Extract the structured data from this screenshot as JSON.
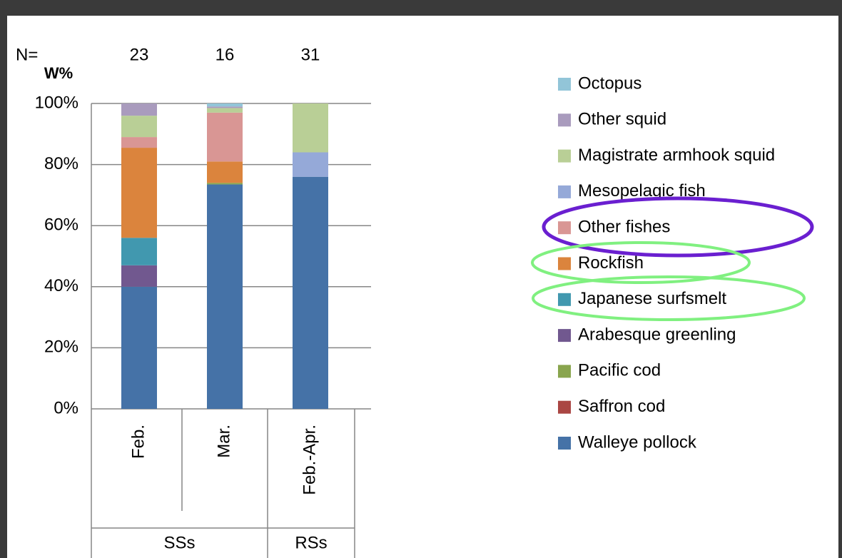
{
  "chart_data": {
    "type": "stacked_bar",
    "n_label": "N=",
    "n": [
      23,
      16,
      31
    ],
    "ylabel": "W%",
    "categories": [
      "Feb.",
      "Mar.",
      "Feb.-Apr."
    ],
    "groups": [
      {
        "label": "SSs",
        "span": 2
      },
      {
        "label": "RSs",
        "span": 1
      }
    ],
    "ylim": [
      0,
      100
    ],
    "yticks": [
      {
        "value": 0,
        "label": "0%"
      },
      {
        "value": 20,
        "label": "20%"
      },
      {
        "value": 40,
        "label": "40%"
      },
      {
        "value": 60,
        "label": "60%"
      },
      {
        "value": 80,
        "label": "80%"
      },
      {
        "value": 100,
        "label": "100%"
      }
    ],
    "grid": true,
    "legend": "right",
    "series": [
      {
        "name": "Walleye pollock",
        "color": "#4572a7",
        "values": [
          40,
          73.5,
          76
        ]
      },
      {
        "name": "Saffron cod",
        "color": "#aa4643",
        "values": [
          0,
          0,
          0
        ]
      },
      {
        "name": "Pacific cod",
        "color": "#89a54e",
        "values": [
          0,
          0.5,
          0
        ]
      },
      {
        "name": "Arabesque greenling",
        "color": "#71588f",
        "values": [
          7,
          0,
          0
        ]
      },
      {
        "name": "Japanese surfsmelt",
        "color": "#4198af",
        "values": [
          9,
          0,
          0
        ]
      },
      {
        "name": "Rockfish",
        "color": "#db843d",
        "values": [
          29.5,
          7,
          0
        ]
      },
      {
        "name": "Other fishes",
        "color": "#d99694",
        "values": [
          3.5,
          16,
          0
        ]
      },
      {
        "name": "Mesopelagic fish",
        "color": "#95a9d8",
        "values": [
          0,
          0,
          8
        ]
      },
      {
        "name": "Magistrate armhook squid",
        "color": "#b9cf96",
        "values": [
          7,
          1.5,
          16
        ]
      },
      {
        "name": "Other squid",
        "color": "#a99bbd",
        "values": [
          4,
          0.5,
          0
        ]
      },
      {
        "name": "Octopus",
        "color": "#92c5d8",
        "values": [
          0,
          1,
          0
        ]
      }
    ]
  }
}
